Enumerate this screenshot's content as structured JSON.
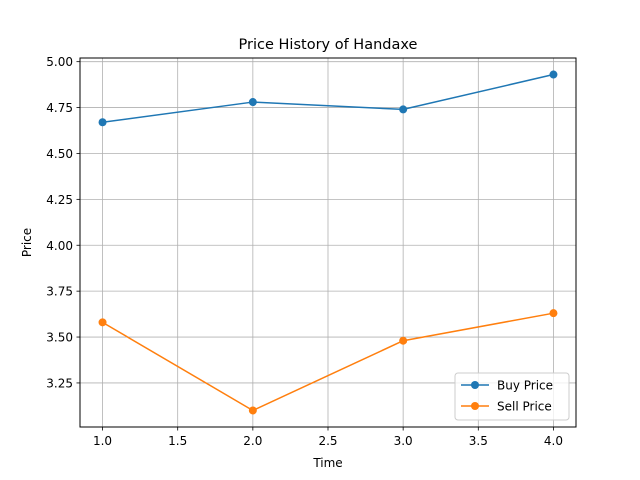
{
  "chart_data": {
    "type": "line",
    "title": "Price History of Handaxe",
    "xlabel": "Time",
    "ylabel": "Price",
    "xlim": [
      0.85,
      4.15
    ],
    "ylim": [
      3.01,
      5.02
    ],
    "x_ticks": [
      1.0,
      1.5,
      2.0,
      2.5,
      3.0,
      3.5,
      4.0
    ],
    "x_tick_labels": [
      "1.0",
      "1.5",
      "2.0",
      "2.5",
      "3.0",
      "3.5",
      "4.0"
    ],
    "y_ticks": [
      3.25,
      3.5,
      3.75,
      4.0,
      4.25,
      4.5,
      4.75,
      5.0
    ],
    "y_tick_labels": [
      "3.25",
      "3.50",
      "3.75",
      "4.00",
      "4.25",
      "4.50",
      "4.75",
      "5.00"
    ],
    "grid": true,
    "legend_position": "lower-right",
    "x": [
      1,
      2,
      3,
      4
    ],
    "series": [
      {
        "name": "Buy Price",
        "color": "#1f77b4",
        "values": [
          4.67,
          4.78,
          4.74,
          4.93
        ]
      },
      {
        "name": "Sell Price",
        "color": "#ff7f0e",
        "values": [
          3.58,
          3.1,
          3.48,
          3.63
        ]
      }
    ]
  }
}
